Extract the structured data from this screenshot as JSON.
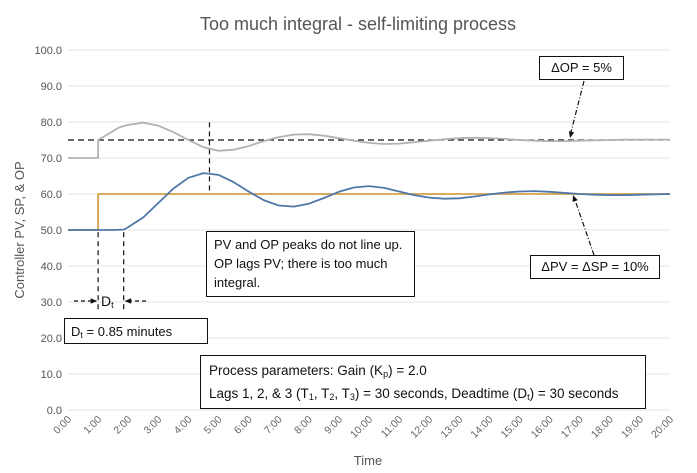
{
  "chart_data": {
    "type": "line",
    "title": "Too much integral - self-limiting process",
    "xlabel": "Time",
    "ylabel": "Controller PV, SP, & OP",
    "xlim": [
      0,
      20
    ],
    "ylim": [
      0,
      100
    ],
    "x_ticks": [
      "0:00",
      "1:00",
      "2:00",
      "3:00",
      "4:00",
      "5:00",
      "6:00",
      "7:00",
      "8:00",
      "9:00",
      "10:00",
      "11:00",
      "12:00",
      "13:00",
      "14:00",
      "15:00",
      "16:00",
      "17:00",
      "18:00",
      "19:00",
      "20:00"
    ],
    "y_ticks": [
      "0.0",
      "10.0",
      "20.0",
      "30.0",
      "40.0",
      "50.0",
      "60.0",
      "70.0",
      "80.0",
      "90.0",
      "100.0"
    ],
    "grid": "horizontal",
    "legend": "none",
    "colors": {
      "pv": "#4f77a8",
      "sp": "#d4a04a",
      "op": "#b2b2b2",
      "ref": "#111111",
      "grid": "#e3e3e3"
    },
    "series": [
      {
        "key": "sp",
        "points": [
          [
            0,
            50
          ],
          [
            1.0,
            50
          ],
          [
            1.0,
            60
          ],
          [
            20,
            60
          ]
        ]
      },
      {
        "key": "op",
        "points": [
          [
            0,
            70
          ],
          [
            1.0,
            70
          ],
          [
            1.0,
            75
          ],
          [
            1.3,
            76.5
          ],
          [
            1.7,
            78.5
          ],
          [
            2.0,
            79.2
          ],
          [
            2.5,
            79.8
          ],
          [
            3.0,
            79.0
          ],
          [
            3.5,
            77.2
          ],
          [
            4.0,
            75.0
          ],
          [
            4.5,
            73.0
          ],
          [
            5.0,
            72.0
          ],
          [
            5.5,
            72.3
          ],
          [
            6.0,
            73.3
          ],
          [
            6.5,
            74.7
          ],
          [
            7.0,
            75.8
          ],
          [
            7.5,
            76.5
          ],
          [
            8.0,
            76.6
          ],
          [
            8.5,
            76.2
          ],
          [
            9.0,
            75.5
          ],
          [
            9.5,
            74.8
          ],
          [
            10.0,
            74.2
          ],
          [
            10.5,
            73.9
          ],
          [
            11.0,
            74.0
          ],
          [
            11.5,
            74.4
          ],
          [
            12.0,
            74.8
          ],
          [
            12.5,
            75.2
          ],
          [
            13.0,
            75.5
          ],
          [
            13.5,
            75.6
          ],
          [
            14.0,
            75.5
          ],
          [
            14.5,
            75.3
          ],
          [
            15.0,
            75.0
          ],
          [
            15.5,
            74.8
          ],
          [
            16.0,
            74.7
          ],
          [
            16.5,
            74.7
          ],
          [
            17.0,
            74.8
          ],
          [
            17.5,
            74.9
          ],
          [
            18.0,
            75.0
          ],
          [
            18.5,
            75.1
          ],
          [
            19.0,
            75.1
          ],
          [
            19.5,
            75.1
          ],
          [
            20.0,
            75.1
          ]
        ]
      },
      {
        "key": "pv",
        "points": [
          [
            0,
            50
          ],
          [
            1.0,
            50
          ],
          [
            1.5,
            50
          ],
          [
            1.85,
            50.1
          ],
          [
            2.0,
            50.8
          ],
          [
            2.5,
            53.5
          ],
          [
            3.0,
            57.5
          ],
          [
            3.5,
            61.5
          ],
          [
            4.0,
            64.5
          ],
          [
            4.5,
            65.8
          ],
          [
            5.0,
            65.3
          ],
          [
            5.5,
            63.3
          ],
          [
            6.0,
            60.7
          ],
          [
            6.5,
            58.3
          ],
          [
            7.0,
            56.8
          ],
          [
            7.5,
            56.5
          ],
          [
            8.0,
            57.3
          ],
          [
            8.5,
            58.9
          ],
          [
            9.0,
            60.6
          ],
          [
            9.5,
            61.8
          ],
          [
            10.0,
            62.2
          ],
          [
            10.5,
            61.7
          ],
          [
            11.0,
            60.7
          ],
          [
            11.5,
            59.7
          ],
          [
            12.0,
            59.0
          ],
          [
            12.5,
            58.7
          ],
          [
            13.0,
            58.8
          ],
          [
            13.5,
            59.3
          ],
          [
            14.0,
            59.9
          ],
          [
            14.5,
            60.4
          ],
          [
            15.0,
            60.7
          ],
          [
            15.5,
            60.8
          ],
          [
            16.0,
            60.6
          ],
          [
            16.5,
            60.3
          ],
          [
            17.0,
            60.0
          ],
          [
            17.5,
            59.8
          ],
          [
            18.0,
            59.7
          ],
          [
            18.5,
            59.7
          ],
          [
            19.0,
            59.8
          ],
          [
            19.5,
            59.9
          ],
          [
            20.0,
            60.0
          ]
        ]
      }
    ],
    "reference_lines": [
      {
        "type": "hline",
        "y": 75,
        "from": 0,
        "to": 20
      },
      {
        "type": "vline",
        "x": 4.7,
        "from": 61,
        "to": 80
      },
      {
        "type": "vline",
        "x": 1.0,
        "from": 28,
        "to": 50
      },
      {
        "type": "vline",
        "x": 1.85,
        "from": 28,
        "to": 50
      }
    ],
    "annotations": {
      "delta_op": "ΔOP = 5%",
      "delta_pv": "ΔPV = ΔSP = 10%",
      "peaks_note": [
        "PV and OP peaks do not line up.",
        "OP lags PV; there is too much",
        "integral."
      ],
      "dt_label": "D",
      "dt_sub": "t",
      "dt_value_pre": "D",
      "dt_value_sub": "t",
      "dt_value_post": " = 0.85 minutes",
      "process_line1": "Process parameters:  Gain (K",
      "process_line1_sub": "p",
      "process_line1_post": ") = 2.0",
      "process_line2_a": "Lags 1, 2, & 3 (T",
      "process_line2_b": ", T",
      "process_line2_c": ", T",
      "process_line2_d": ") = 30 seconds, Deadtime (D",
      "process_line2_e": ") = 30 seconds",
      "sub_1": "1",
      "sub_2": "2",
      "sub_3": "3",
      "sub_t": "t"
    }
  }
}
